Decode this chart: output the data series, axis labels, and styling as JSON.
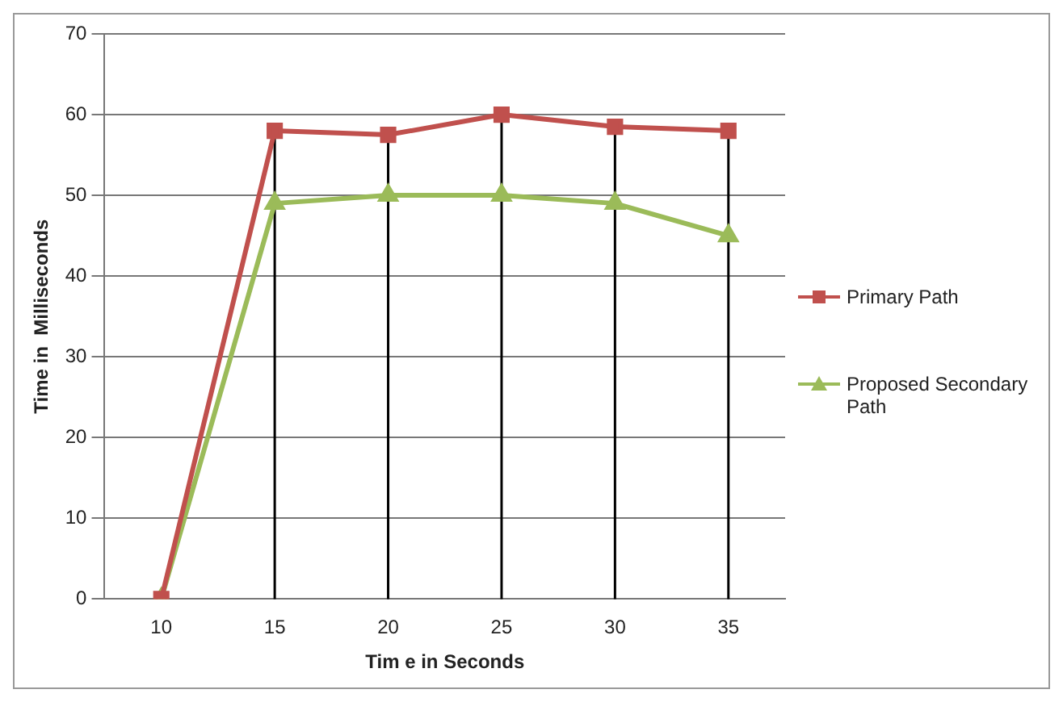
{
  "chart_data": {
    "type": "line",
    "xlabel": "Tim e in Seconds",
    "ylabel": "Time in  Milliseconds",
    "categories": [
      "10",
      "15",
      "20",
      "25",
      "30",
      "35"
    ],
    "series": [
      {
        "name": "Primary Path",
        "color": "#c0504d",
        "marker": "square",
        "values": [
          0,
          58,
          57.5,
          60,
          58.5,
          58
        ]
      },
      {
        "name": "Proposed Secondary Path",
        "color": "#9bbb59",
        "marker": "triangle",
        "values": [
          0,
          49,
          50,
          50,
          49,
          45
        ]
      }
    ],
    "ylim": [
      0,
      70
    ],
    "yticks": [
      0,
      10,
      20,
      30,
      40,
      50,
      60,
      70
    ],
    "grid": true,
    "legend": "right"
  }
}
